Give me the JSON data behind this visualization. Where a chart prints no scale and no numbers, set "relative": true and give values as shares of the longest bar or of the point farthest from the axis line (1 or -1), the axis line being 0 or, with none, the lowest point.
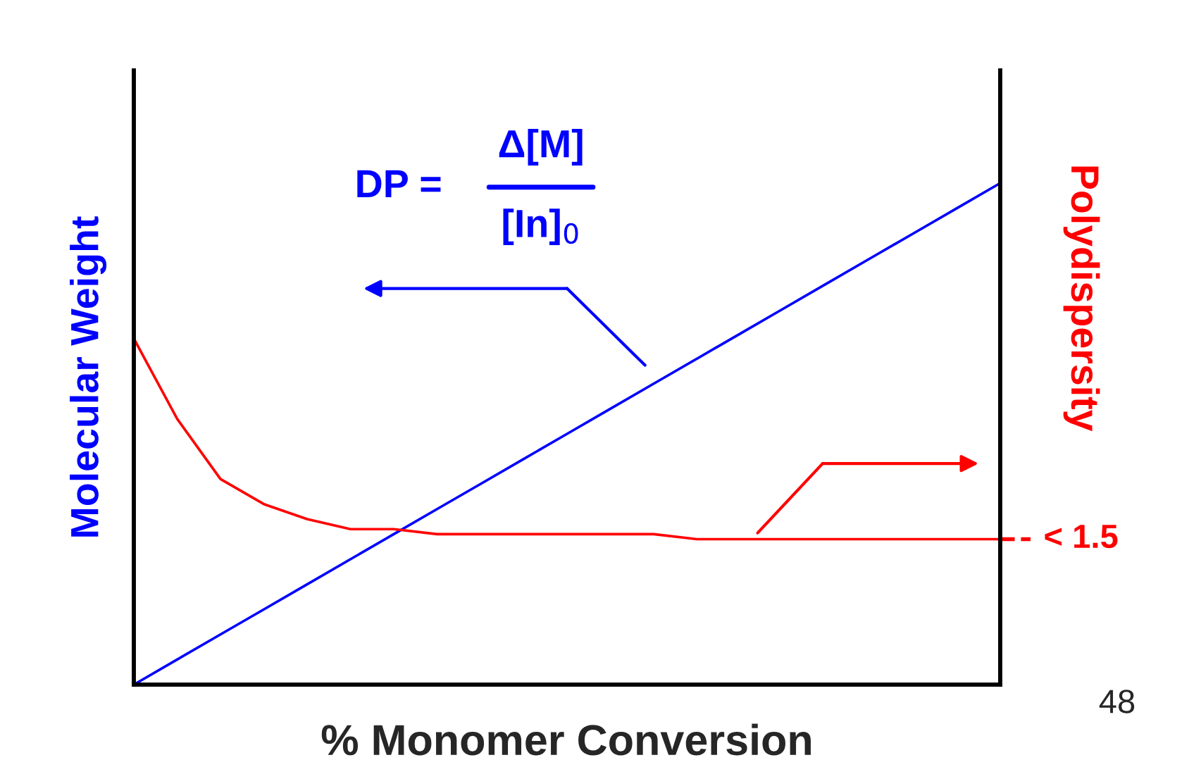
{
  "chart_data": {
    "type": "line",
    "relative": true,
    "xlabel": "% Monomer Conversion",
    "ylabel": "Molecular Weight",
    "y2label": "Polydispersity",
    "categories": [
      null,
      null,
      null,
      null,
      null,
      null,
      null,
      null,
      null,
      null,
      null,
      null,
      null,
      null,
      null,
      null,
      null,
      null,
      null,
      null,
      null
    ],
    "series": [
      {
        "color": "#0000ff",
        "values": [
          0,
          0.05,
          0.1,
          0.15,
          0.2,
          0.25,
          0.3,
          0.35,
          0.4,
          0.45,
          0.5,
          0.55,
          0.6,
          0.65,
          0.7,
          0.75,
          0.8,
          0.85,
          0.9,
          0.95,
          1.0
        ]
      },
      {
        "color": "#ff0000",
        "values": [
          0.69,
          0.53,
          0.41,
          0.36,
          0.33,
          0.31,
          0.31,
          0.3,
          0.3,
          0.3,
          0.3,
          0.3,
          0.3,
          0.29,
          0.29,
          0.29,
          0.29,
          0.29,
          0.29,
          0.29,
          0.29
        ]
      }
    ],
    "annotations": [
      "DP =",
      "Δ[M]",
      "[In]$_{0}$",
      "48",
      "< 1.5"
    ],
    "legend": false,
    "tick_labels": false,
    "marker": "none",
    "line_style": "solid"
  }
}
